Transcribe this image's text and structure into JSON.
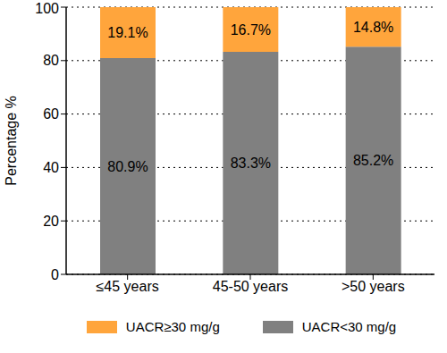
{
  "chart_data": {
    "type": "bar",
    "stacked": true,
    "data_labels": true,
    "grid": true,
    "legend": "bottom",
    "y_label": "Percentage %",
    "categories": [
      "≤45 years",
      "45-50 years",
      ">50 years"
    ],
    "ylim": [
      0,
      100
    ],
    "yticks": [
      0,
      20,
      40,
      60,
      80,
      100
    ],
    "series": [
      {
        "name": "UACR<30 mg/g",
        "color": "#808080",
        "values": [
          80.9,
          83.3,
          85.2
        ],
        "value_labels": [
          "80.9%",
          "83.3%",
          "85.2%"
        ]
      },
      {
        "name": "UACR≥30 mg/g",
        "color": "#FFA53C",
        "values": [
          19.1,
          16.7,
          14.8
        ],
        "value_labels": [
          "19.1%",
          "16.7%",
          "14.8%"
        ]
      }
    ]
  }
}
